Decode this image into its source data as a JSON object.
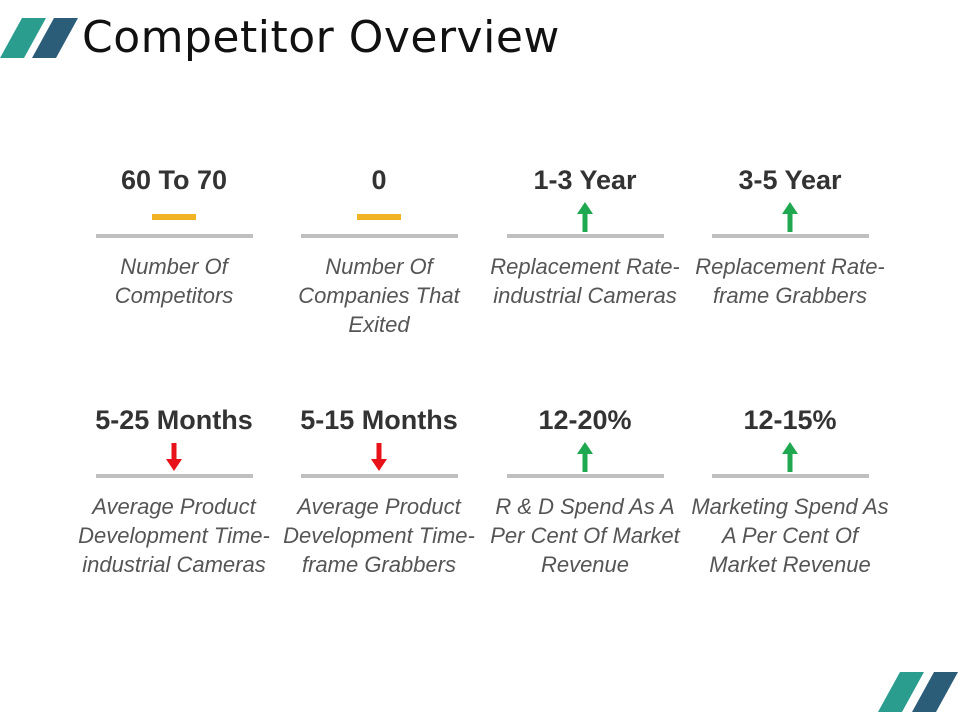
{
  "title": "Competitor Overview",
  "colors": {
    "accent_teal": "#2a9d8f",
    "accent_blue": "#2c5d78",
    "neutral": "#f0b323",
    "up": "#1fa84f",
    "down": "#e8131a",
    "rule": "#bfbfbf"
  },
  "metrics": [
    {
      "value": "60 To 70",
      "indicator": "neutral-dash-icon",
      "label": "Number Of Competitors"
    },
    {
      "value": "0",
      "indicator": "neutral-dash-icon",
      "label": "Number Of Companies That Exited"
    },
    {
      "value": "1-3 Year",
      "indicator": "up-arrow-icon",
      "label": "Replacement Rate-industrial Cameras"
    },
    {
      "value": "3-5 Year",
      "indicator": "up-arrow-icon",
      "label": "Replacement Rate-frame Grabbers"
    },
    {
      "value": "5-25 Months",
      "indicator": "down-arrow-icon",
      "label": "Average Product Development Time-industrial Cameras"
    },
    {
      "value": "5-15 Months",
      "indicator": "down-arrow-icon",
      "label": "Average Product Development Time-frame Grabbers"
    },
    {
      "value": "12-20%",
      "indicator": "up-arrow-icon",
      "label": "R & D Spend As A Per Cent Of Market Revenue"
    },
    {
      "value": "12-15%",
      "indicator": "up-arrow-icon",
      "label": "Marketing Spend As A Per Cent Of Market Revenue"
    }
  ]
}
